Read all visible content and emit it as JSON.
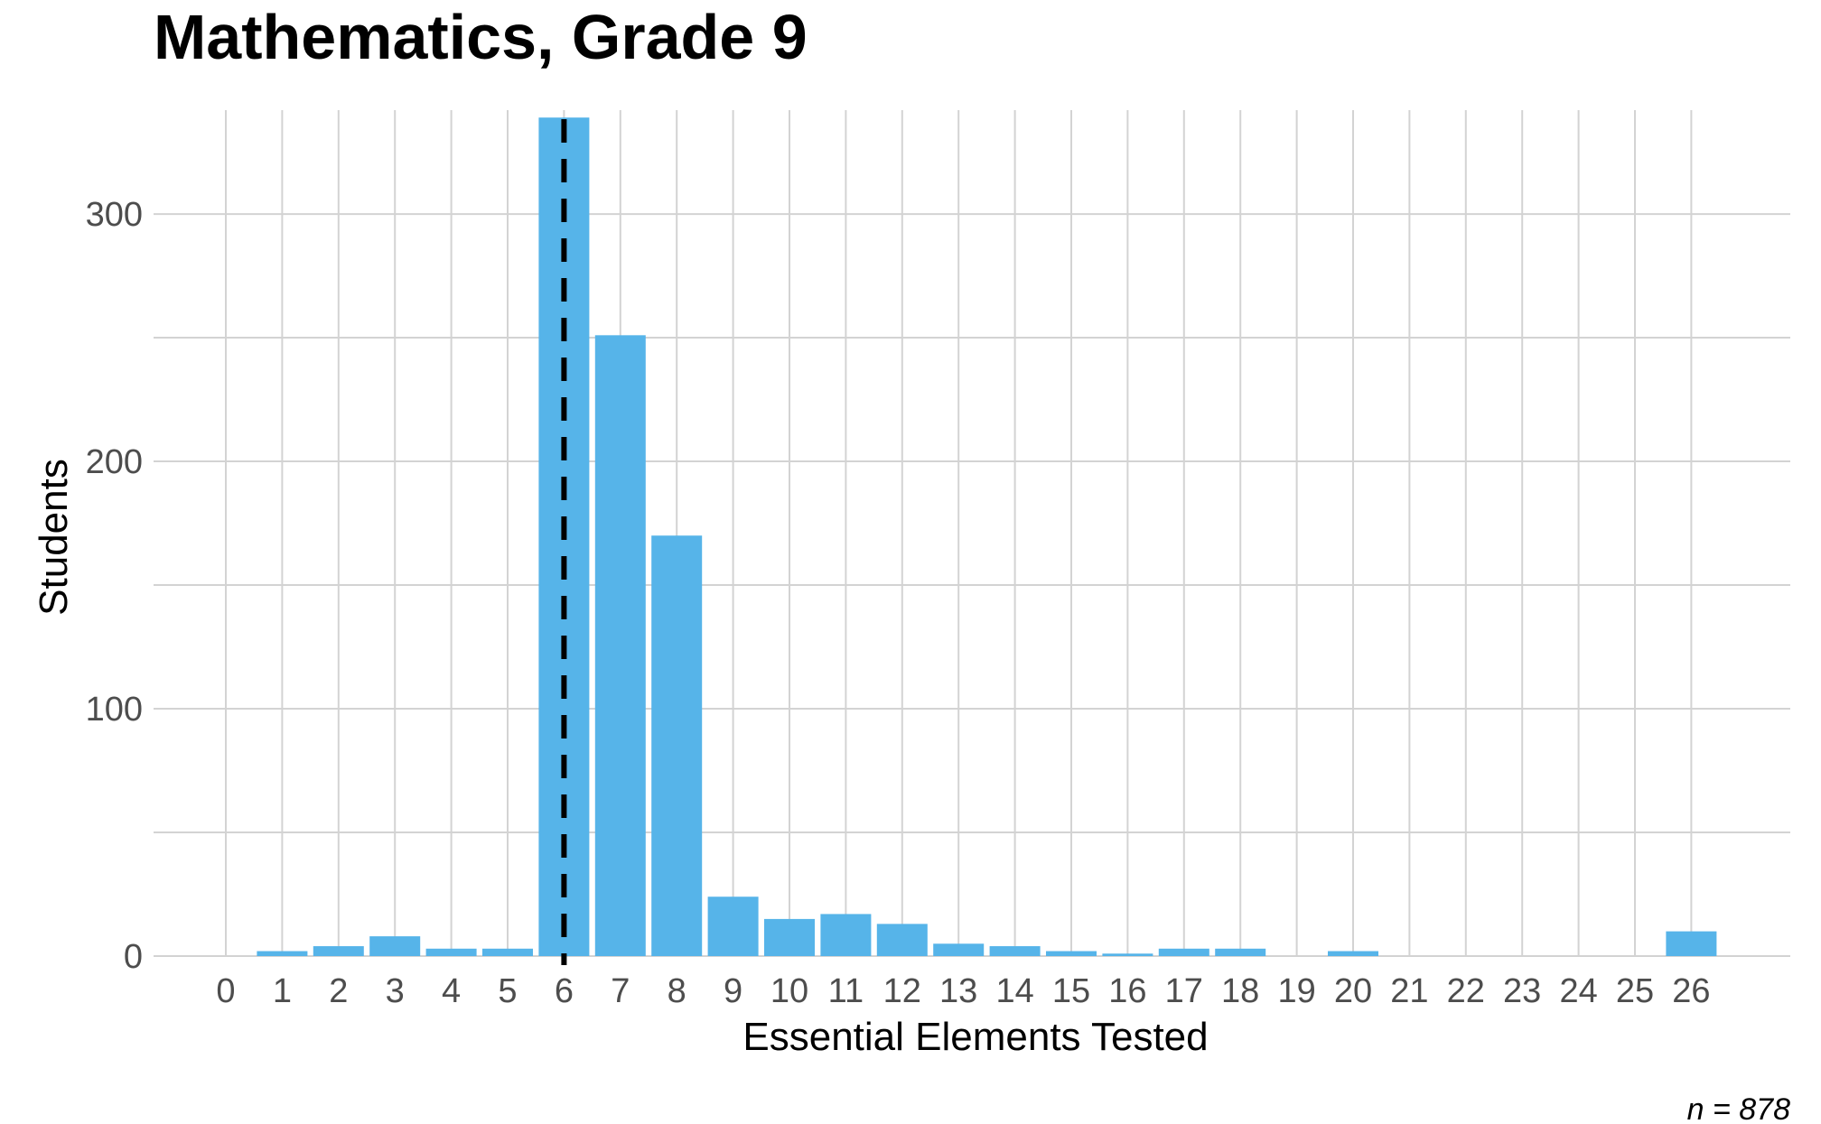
{
  "chart_data": {
    "type": "bar",
    "title": "Mathematics, Grade 9",
    "xlabel": "Essential Elements Tested",
    "ylabel": "Students",
    "caption": "n = 878",
    "x": [
      0,
      1,
      2,
      3,
      4,
      5,
      6,
      7,
      8,
      9,
      10,
      11,
      12,
      13,
      14,
      15,
      16,
      17,
      18,
      19,
      20,
      21,
      22,
      23,
      24,
      25,
      26
    ],
    "x_tick_labels": [
      "0",
      "1",
      "2",
      "3",
      "4",
      "5",
      "6",
      "7",
      "8",
      "9",
      "10",
      "11",
      "12",
      "13",
      "14",
      "15",
      "16",
      "17",
      "18",
      "19",
      "20",
      "21",
      "22",
      "23",
      "24",
      "25",
      "26"
    ],
    "values": [
      0,
      2,
      4,
      8,
      3,
      3,
      339,
      251,
      170,
      24,
      15,
      17,
      13,
      5,
      4,
      2,
      1,
      3,
      3,
      0,
      2,
      0,
      0,
      0,
      0,
      0,
      10
    ],
    "y_ticks": [
      0,
      100,
      200,
      300
    ],
    "y_tick_labels": [
      "0",
      "100",
      "200",
      "300"
    ],
    "ylim": [
      0,
      342
    ],
    "reference_line": {
      "x": 6,
      "style": "dashed"
    },
    "grid": true,
    "bar_color": "#56b4e9",
    "grid_color": "#d3d3d3",
    "reference_line_color": "#000000"
  }
}
